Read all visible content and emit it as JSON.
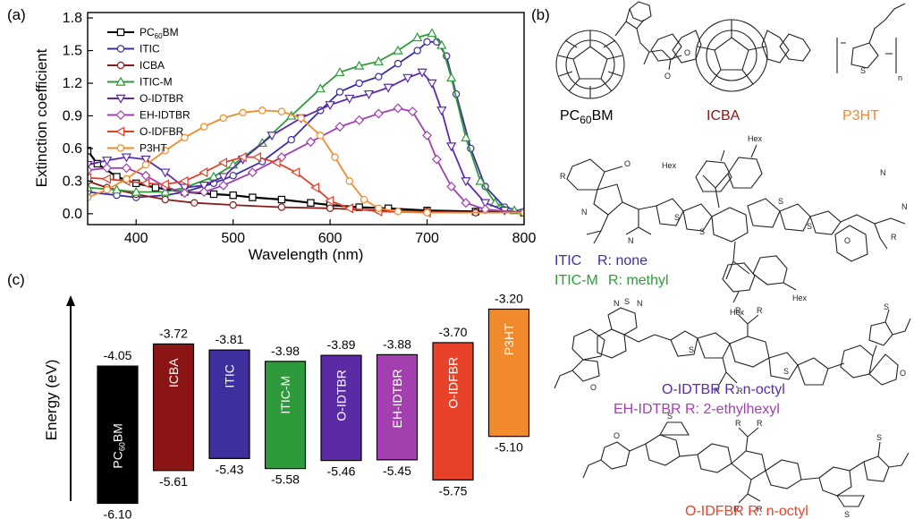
{
  "panels": {
    "a": "(a)",
    "b": "(b)",
    "c": "(c)"
  },
  "chart_data": [
    {
      "type": "line",
      "xlabel": "Wavelength (nm)",
      "ylabel": "Extinction coefficient",
      "xlim": [
        350,
        800
      ],
      "ylim": [
        -0.1,
        1.85
      ],
      "xticks": [
        400,
        500,
        600,
        700,
        800
      ],
      "yticks": [
        0.0,
        0.3,
        0.6,
        0.9,
        1.2,
        1.5,
        1.8
      ],
      "legend_position": "top-left",
      "series": [
        {
          "name": "PC60BM",
          "name_base": "PC",
          "name_sub": "60",
          "name_tail": "BM",
          "color": "#000000",
          "marker": "square",
          "points": [
            [
              350,
              0.58
            ],
            [
              360,
              0.46
            ],
            [
              380,
              0.34
            ],
            [
              400,
              0.28
            ],
            [
              420,
              0.24
            ],
            [
              450,
              0.2
            ],
            [
              480,
              0.18
            ],
            [
              500,
              0.17
            ],
            [
              520,
              0.15
            ],
            [
              550,
              0.13
            ],
            [
              580,
              0.1
            ],
            [
              600,
              0.08
            ],
            [
              630,
              0.06
            ],
            [
              660,
              0.05
            ],
            [
              700,
              0.03
            ],
            [
              750,
              0.02
            ],
            [
              800,
              0.01
            ]
          ]
        },
        {
          "name": "ITIC",
          "color": "#3b2fa0",
          "marker": "circle",
          "points": [
            [
              350,
              0.2
            ],
            [
              380,
              0.17
            ],
            [
              400,
              0.15
            ],
            [
              430,
              0.17
            ],
            [
              450,
              0.2
            ],
            [
              480,
              0.28
            ],
            [
              500,
              0.35
            ],
            [
              530,
              0.48
            ],
            [
              560,
              0.68
            ],
            [
              590,
              0.95
            ],
            [
              610,
              1.12
            ],
            [
              630,
              1.2
            ],
            [
              650,
              1.26
            ],
            [
              670,
              1.38
            ],
            [
              690,
              1.5
            ],
            [
              700,
              1.58
            ],
            [
              710,
              1.58
            ],
            [
              720,
              1.45
            ],
            [
              730,
              1.1
            ],
            [
              745,
              0.6
            ],
            [
              760,
              0.25
            ],
            [
              780,
              0.06
            ],
            [
              800,
              0.02
            ]
          ]
        },
        {
          "name": "ICBA",
          "color": "#8b1a1a",
          "marker": "circle",
          "points": [
            [
              350,
              0.3
            ],
            [
              370,
              0.24
            ],
            [
              400,
              0.18
            ],
            [
              430,
              0.13
            ],
            [
              460,
              0.1
            ],
            [
              500,
              0.08
            ],
            [
              550,
              0.06
            ],
            [
              600,
              0.05
            ],
            [
              650,
              0.03
            ],
            [
              700,
              0.02
            ],
            [
              750,
              0.01
            ],
            [
              800,
              0.01
            ]
          ]
        },
        {
          "name": "ITIC-M",
          "color": "#2e9a3a",
          "marker": "triangle-up",
          "points": [
            [
              350,
              0.24
            ],
            [
              380,
              0.22
            ],
            [
              400,
              0.2
            ],
            [
              430,
              0.2
            ],
            [
              450,
              0.24
            ],
            [
              480,
              0.34
            ],
            [
              500,
              0.45
            ],
            [
              530,
              0.65
            ],
            [
              560,
              0.9
            ],
            [
              590,
              1.15
            ],
            [
              610,
              1.3
            ],
            [
              630,
              1.36
            ],
            [
              650,
              1.4
            ],
            [
              670,
              1.5
            ],
            [
              690,
              1.62
            ],
            [
              705,
              1.66
            ],
            [
              715,
              1.55
            ],
            [
              725,
              1.25
            ],
            [
              740,
              0.7
            ],
            [
              755,
              0.3
            ],
            [
              770,
              0.1
            ],
            [
              790,
              0.03
            ],
            [
              800,
              0.02
            ]
          ]
        },
        {
          "name": "O-IDTBR",
          "color": "#5c2aa8",
          "marker": "triangle-down",
          "points": [
            [
              350,
              0.45
            ],
            [
              370,
              0.49
            ],
            [
              390,
              0.52
            ],
            [
              410,
              0.5
            ],
            [
              430,
              0.38
            ],
            [
              450,
              0.24
            ],
            [
              470,
              0.26
            ],
            [
              490,
              0.34
            ],
            [
              510,
              0.5
            ],
            [
              540,
              0.72
            ],
            [
              570,
              0.88
            ],
            [
              600,
              1.0
            ],
            [
              620,
              1.06
            ],
            [
              640,
              1.1
            ],
            [
              660,
              1.16
            ],
            [
              680,
              1.25
            ],
            [
              695,
              1.3
            ],
            [
              705,
              1.2
            ],
            [
              715,
              0.95
            ],
            [
              725,
              0.62
            ],
            [
              740,
              0.3
            ],
            [
              760,
              0.1
            ],
            [
              780,
              0.03
            ],
            [
              800,
              0.01
            ]
          ]
        },
        {
          "name": "EH-IDTBR",
          "color": "#a040b0",
          "marker": "diamond",
          "points": [
            [
              350,
              0.4
            ],
            [
              370,
              0.42
            ],
            [
              390,
              0.42
            ],
            [
              410,
              0.35
            ],
            [
              430,
              0.25
            ],
            [
              450,
              0.19
            ],
            [
              470,
              0.2
            ],
            [
              490,
              0.26
            ],
            [
              520,
              0.38
            ],
            [
              550,
              0.52
            ],
            [
              580,
              0.66
            ],
            [
              610,
              0.8
            ],
            [
              630,
              0.86
            ],
            [
              650,
              0.92
            ],
            [
              670,
              0.97
            ],
            [
              685,
              0.94
            ],
            [
              700,
              0.72
            ],
            [
              710,
              0.5
            ],
            [
              725,
              0.25
            ],
            [
              740,
              0.1
            ],
            [
              760,
              0.04
            ],
            [
              800,
              0.01
            ]
          ]
        },
        {
          "name": "O-IDFBR",
          "color": "#e0402a",
          "marker": "triangle-left",
          "points": [
            [
              350,
              0.33
            ],
            [
              370,
              0.32
            ],
            [
              390,
              0.3
            ],
            [
              410,
              0.28
            ],
            [
              430,
              0.27
            ],
            [
              450,
              0.3
            ],
            [
              470,
              0.38
            ],
            [
              490,
              0.47
            ],
            [
              510,
              0.52
            ],
            [
              525,
              0.52
            ],
            [
              545,
              0.47
            ],
            [
              565,
              0.38
            ],
            [
              585,
              0.24
            ],
            [
              600,
              0.12
            ],
            [
              620,
              0.05
            ],
            [
              650,
              0.02
            ],
            [
              700,
              0.01
            ],
            [
              800,
              0.01
            ]
          ]
        },
        {
          "name": "P3HT",
          "color": "#f08a2a",
          "marker": "circle",
          "points": [
            [
              350,
              0.15
            ],
            [
              370,
              0.22
            ],
            [
              390,
              0.32
            ],
            [
              410,
              0.45
            ],
            [
              430,
              0.58
            ],
            [
              450,
              0.7
            ],
            [
              470,
              0.8
            ],
            [
              490,
              0.88
            ],
            [
              510,
              0.93
            ],
            [
              530,
              0.95
            ],
            [
              550,
              0.94
            ],
            [
              570,
              0.88
            ],
            [
              590,
              0.72
            ],
            [
              605,
              0.52
            ],
            [
              620,
              0.3
            ],
            [
              635,
              0.13
            ],
            [
              650,
              0.05
            ],
            [
              670,
              0.02
            ],
            [
              700,
              0.01
            ],
            [
              800,
              0.01
            ]
          ]
        }
      ]
    },
    {
      "type": "bar",
      "title": "",
      "ylabel": "Energy (eV)",
      "ylim": [
        -6.2,
        -3.1
      ],
      "categories": [
        {
          "label": "PC60BM",
          "label_base": "PC",
          "label_sub": "60",
          "label_tail": "BM",
          "lumo": -4.05,
          "homo": -6.1,
          "lumo_label": "-4.05",
          "homo_label": "-6.10",
          "color": "#000000"
        },
        {
          "label": "ICBA",
          "lumo": -3.72,
          "homo": -5.61,
          "lumo_label": "-3.72",
          "homo_label": "-5.61",
          "color": "#8b1414"
        },
        {
          "label": "ITIC",
          "lumo": -3.81,
          "homo": -5.43,
          "lumo_label": "-3.81",
          "homo_label": "-5.43",
          "color": "#3d2f9e"
        },
        {
          "label": "ITIC-M",
          "lumo": -3.98,
          "homo": -5.58,
          "lumo_label": "-3.98",
          "homo_label": "-5.58",
          "color": "#2f9a3c"
        },
        {
          "label": "O-IDTBR",
          "lumo": -3.89,
          "homo": -5.46,
          "lumo_label": "-3.89",
          "homo_label": "-5.46",
          "color": "#5b2ba6"
        },
        {
          "label": "EH-IDTBR",
          "lumo": -3.88,
          "homo": -5.45,
          "lumo_label": "-3.88",
          "homo_label": "-5.45",
          "color": "#a43fb0"
        },
        {
          "label": "O-IDFBR",
          "lumo": -3.7,
          "homo": -5.75,
          "lumo_label": "-3.70",
          "homo_label": "-5.75",
          "color": "#e8432a"
        },
        {
          "label": "P3HT",
          "lumo": -3.2,
          "homo": -5.1,
          "lumo_label": "-3.20",
          "homo_label": "-5.10",
          "color": "#f08a2c"
        }
      ]
    }
  ],
  "structures": {
    "pcbm_label_base": "PC",
    "pcbm_label_sub": "60",
    "pcbm_label_tail": "BM",
    "icba_label": "ICBA",
    "p3ht_label": "P3HT",
    "itic_line1_name": "ITIC",
    "itic_line1_r": "R: none",
    "itic_line2_name": "ITIC-M",
    "itic_line2_r": "R: methyl",
    "idtbr_line1": "O-IDTBR   R: n-octyl",
    "idtbr_line2": "EH-IDTBR R: 2-ethylhexyl",
    "idfbr_line": "O-IDFBR R: n-octyl",
    "atoms": {
      "hex": "Hex",
      "r": "R",
      "o": "O",
      "n": "N",
      "s": "S"
    },
    "colors": {
      "icba": "#8b1414",
      "p3ht": "#f08a2c",
      "itic": "#3d2f9e",
      "iticm": "#2f9a3c",
      "idtbr": "#5b2ba6",
      "ehidtbr": "#a43fb0",
      "idfbr": "#e8432a"
    }
  }
}
